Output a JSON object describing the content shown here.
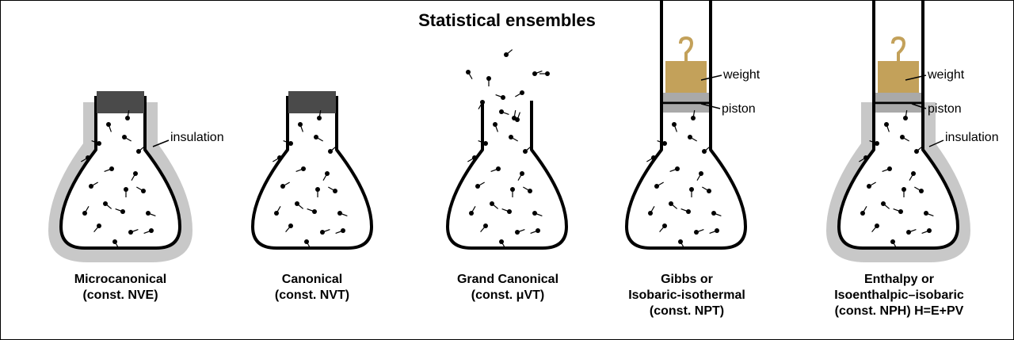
{
  "title": "Statistical ensembles",
  "labels": {
    "insulation": "insulation",
    "weight": "weight",
    "piston": "piston"
  },
  "ensembles": [
    {
      "line1": "Microcanonical",
      "line2": "(const. NVE)",
      "line3": ""
    },
    {
      "line1": "Canonical",
      "line2": "(const. NVT)",
      "line3": ""
    },
    {
      "line1": "Grand Canonical",
      "line2": "(const. μVT)",
      "line3": ""
    },
    {
      "line1": "Gibbs or",
      "line2": "Isobaric-isothermal",
      "line3": "(const. NPT)"
    },
    {
      "line1": "Enthalpy or",
      "line2": "Isoenthalpic–isobaric",
      "line3": "(const. NPH) H=E+PV"
    }
  ],
  "colors": {
    "insulation": "#c8c8c8",
    "stopper": "#4a4a4a",
    "weight": "#c3a15a",
    "piston": "#a9a9a9",
    "particle": "#000000"
  }
}
